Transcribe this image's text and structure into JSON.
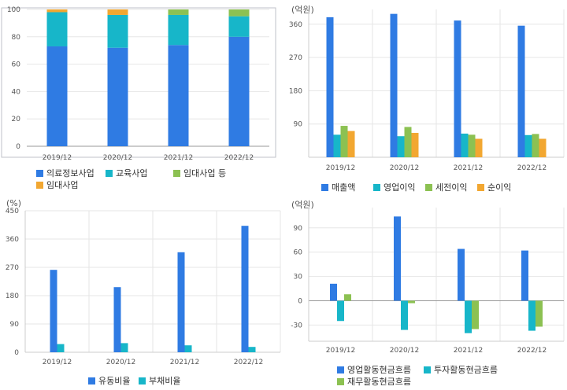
{
  "colors": {
    "blue": "#2f7be3",
    "cyan": "#17b6c9",
    "green": "#8cc152",
    "orange": "#f2a731",
    "plot_border": "#bfc2c8",
    "grid": "#e6e6e6"
  },
  "chart_data": [
    {
      "type": "bar",
      "stacked": true,
      "unit": "",
      "categories": [
        "2019/12",
        "2020/12",
        "2021/12",
        "2022/12"
      ],
      "ylim": [
        0,
        100
      ],
      "yticks": [
        "0",
        "20",
        "40",
        "60",
        "80",
        "100"
      ],
      "plot_frame": true,
      "series": [
        {
          "name": "의료정보사업",
          "color": "#2f7be3",
          "values": [
            73,
            72,
            74,
            80
          ]
        },
        {
          "name": "교육사업",
          "color": "#17b6c9",
          "values": [
            25,
            24,
            22,
            15
          ]
        },
        {
          "name": "임대사업 등",
          "color": "#8cc152",
          "values": [
            0,
            0,
            4,
            5
          ]
        },
        {
          "name": "임대사업",
          "color": "#f2a731",
          "values": [
            2,
            4,
            0,
            0
          ]
        }
      ]
    },
    {
      "type": "bar",
      "unit": "(억원)",
      "categories": [
        "2019/12",
        "2020/12",
        "2021/12",
        "2022/12"
      ],
      "ylim": [
        0,
        400
      ],
      "yticks": [
        "90",
        "180",
        "270",
        "360"
      ],
      "plot_frame": false,
      "series": [
        {
          "name": "매출액",
          "color": "#2f7be3",
          "values": [
            379,
            388,
            370,
            356
          ]
        },
        {
          "name": "영업이익",
          "color": "#17b6c9",
          "values": [
            61,
            57,
            64,
            60
          ]
        },
        {
          "name": "세전이익",
          "color": "#8cc152",
          "values": [
            85,
            82,
            61,
            63
          ]
        },
        {
          "name": "순이익",
          "color": "#f2a731",
          "values": [
            71,
            66,
            50,
            50
          ]
        }
      ]
    },
    {
      "type": "bar",
      "unit": "(%)",
      "categories": [
        "2019/12",
        "2020/12",
        "2021/12",
        "2022/12"
      ],
      "ylim": [
        0,
        450
      ],
      "yticks": [
        "0",
        "90",
        "180",
        "270",
        "360",
        "450"
      ],
      "plot_frame": false,
      "series": [
        {
          "name": "유동비율",
          "color": "#2f7be3",
          "values": [
            262,
            207,
            318,
            402
          ]
        },
        {
          "name": "부채비율",
          "color": "#17b6c9",
          "values": [
            26,
            29,
            22,
            17
          ]
        }
      ]
    },
    {
      "type": "bar",
      "unit": "(억원)",
      "categories": [
        "2019/12",
        "2020/12",
        "2021/12",
        "2022/12"
      ],
      "ylim": [
        -50,
        115
      ],
      "yticks": [
        "-30",
        "0",
        "30",
        "60",
        "90"
      ],
      "plot_frame": false,
      "series": [
        {
          "name": "영업활동현금흐름",
          "color": "#2f7be3",
          "values": [
            21,
            104,
            64,
            62
          ]
        },
        {
          "name": "투자활동현금흐름",
          "color": "#17b6c9",
          "values": [
            -25,
            -36,
            -40,
            -37
          ]
        },
        {
          "name": "재무활동현금흐름",
          "color": "#8cc152",
          "values": [
            8,
            -3,
            -35,
            -32
          ]
        }
      ]
    }
  ]
}
